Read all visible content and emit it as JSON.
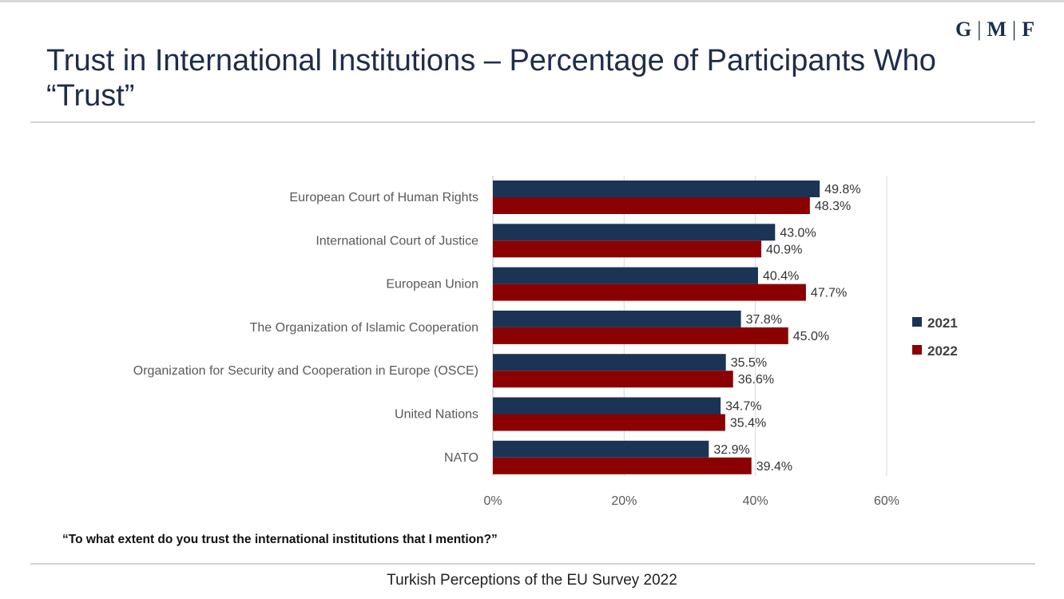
{
  "logo": {
    "parts": [
      "G",
      "M",
      "F"
    ]
  },
  "title": "Trust in International Institutions – Percentage of Participants Who “Trust”",
  "question": "“To what extent do you trust the international institutions that I mention?”",
  "footer": "Turkish Perceptions of the EU Survey 2022",
  "colors": {
    "s2021": "#1b3455",
    "s2022": "#8b0000",
    "grid": "#d9d9d9",
    "axis_text": "#595959"
  },
  "chart_data": {
    "type": "bar",
    "orientation": "horizontal",
    "categories": [
      "European Court of Human Rights",
      "International Court of Justice",
      "European Union",
      "The Organization of Islamic Cooperation",
      "Organization for Security and Cooperation in Europe (OSCE)",
      "United Nations",
      "NATO"
    ],
    "series": [
      {
        "name": "2021",
        "values": [
          49.8,
          43.0,
          40.4,
          37.8,
          35.5,
          34.7,
          32.9
        ]
      },
      {
        "name": "2022",
        "values": [
          48.3,
          40.9,
          47.7,
          45.0,
          36.6,
          35.4,
          39.4
        ]
      }
    ],
    "data_labels": [
      [
        "49.8%",
        "43.0%",
        "40.4%",
        "37.8%",
        "35.5%",
        "34.7%",
        "32.9%"
      ],
      [
        "48.3%",
        "40.9%",
        "47.7%",
        "45.0%",
        "36.6%",
        "35.4%",
        "39.4%"
      ]
    ],
    "x_ticks": [
      "0%",
      "20%",
      "40%",
      "60%"
    ],
    "xlim": [
      0,
      60
    ],
    "grid": true,
    "legend_position": "right"
  }
}
